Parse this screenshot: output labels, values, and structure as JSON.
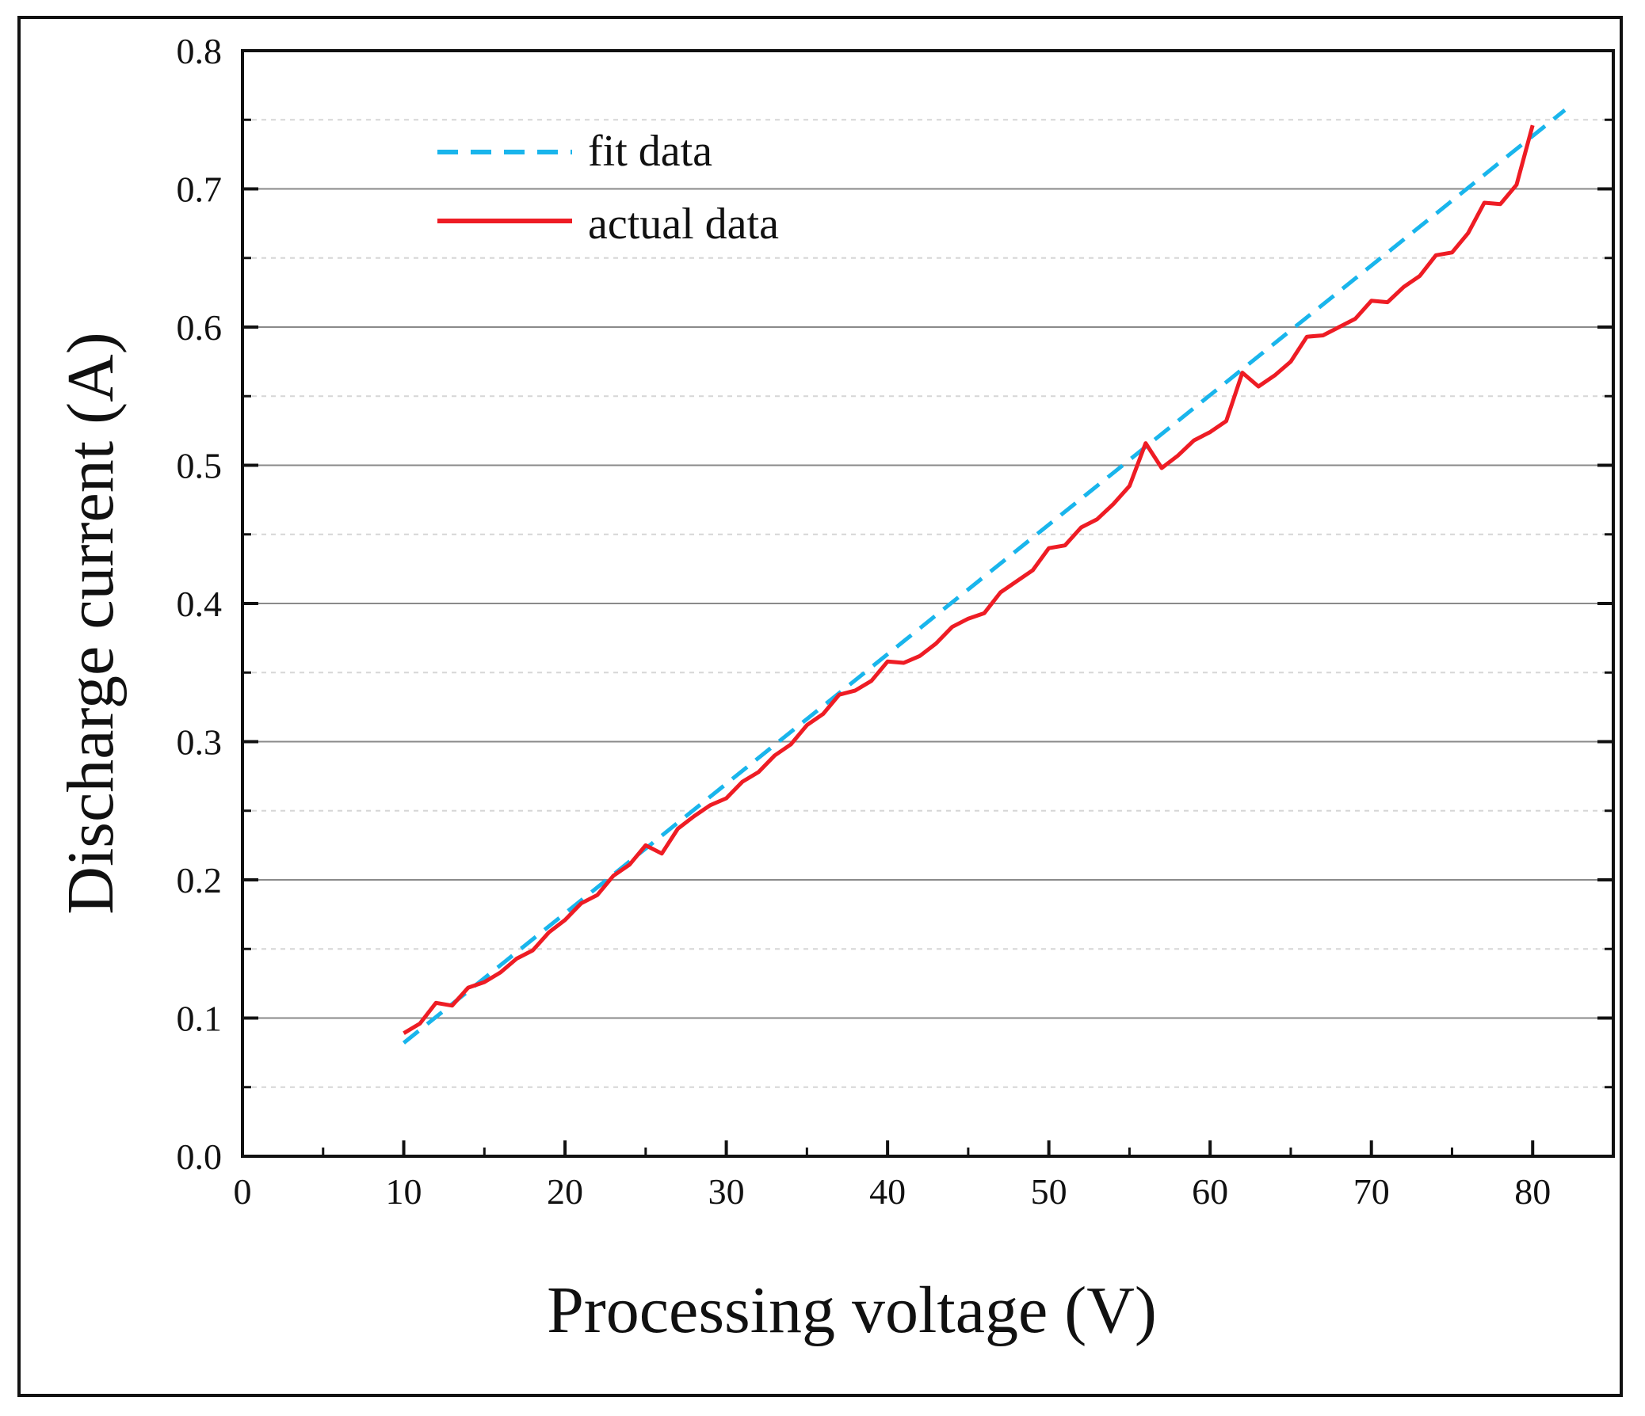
{
  "chart_data": {
    "type": "line",
    "title": "",
    "xlabel": "Processing voltage (V)",
    "ylabel": "Discharge current (A)",
    "xlim": [
      0,
      85
    ],
    "ylim": [
      0.0,
      0.8
    ],
    "x_ticks": [
      0,
      10,
      20,
      30,
      40,
      50,
      60,
      70,
      80
    ],
    "x_tick_labels": [
      "0",
      "10",
      "20",
      "30",
      "40",
      "50",
      "60",
      "70",
      "80"
    ],
    "y_ticks": [
      0.0,
      0.1,
      0.2,
      0.3,
      0.4,
      0.5,
      0.6,
      0.7,
      0.8
    ],
    "y_tick_labels": [
      "0.0",
      "0.1",
      "0.2",
      "0.3",
      "0.4",
      "0.5",
      "0.6",
      "0.7",
      "0.8"
    ],
    "grid": {
      "major": "solid gray horizontal",
      "minor": "dotted light gray horizontal"
    },
    "legend": {
      "placement": "top-left"
    },
    "series": [
      {
        "name": "fit data",
        "style": "dashed",
        "color": "#19b5ec",
        "x": [
          10,
          82
        ],
        "y": [
          0.082,
          0.757
        ]
      },
      {
        "name": "actual data",
        "style": "solid",
        "color": "#ee1c24",
        "x": [
          10,
          11,
          12,
          13,
          14,
          15,
          16,
          17,
          18,
          19,
          20,
          21,
          22,
          23,
          24,
          25,
          26,
          27,
          28,
          29,
          30,
          31,
          32,
          33,
          34,
          35,
          36,
          37,
          38,
          39,
          40,
          41,
          42,
          43,
          44,
          45,
          46,
          47,
          48,
          49,
          50,
          51,
          52,
          53,
          54,
          55,
          56,
          57,
          58,
          59,
          60,
          61,
          62,
          63,
          64,
          65,
          66,
          67,
          68,
          69,
          70,
          71,
          72,
          73,
          74,
          75,
          76,
          77,
          78,
          79,
          80
        ],
        "y": [
          0.089,
          0.096,
          0.111,
          0.109,
          0.122,
          0.126,
          0.133,
          0.143,
          0.149,
          0.162,
          0.171,
          0.183,
          0.189,
          0.203,
          0.211,
          0.225,
          0.219,
          0.237,
          0.246,
          0.254,
          0.259,
          0.271,
          0.278,
          0.29,
          0.298,
          0.312,
          0.32,
          0.334,
          0.337,
          0.344,
          0.358,
          0.357,
          0.362,
          0.371,
          0.383,
          0.389,
          0.393,
          0.408,
          0.416,
          0.424,
          0.44,
          0.442,
          0.455,
          0.461,
          0.472,
          0.485,
          0.516,
          0.498,
          0.507,
          0.518,
          0.524,
          0.532,
          0.567,
          0.557,
          0.565,
          0.575,
          0.593,
          0.594,
          0.6,
          0.606,
          0.619,
          0.618,
          0.629,
          0.637,
          0.652,
          0.654,
          0.668,
          0.69,
          0.689,
          0.703,
          0.746
        ]
      }
    ]
  }
}
